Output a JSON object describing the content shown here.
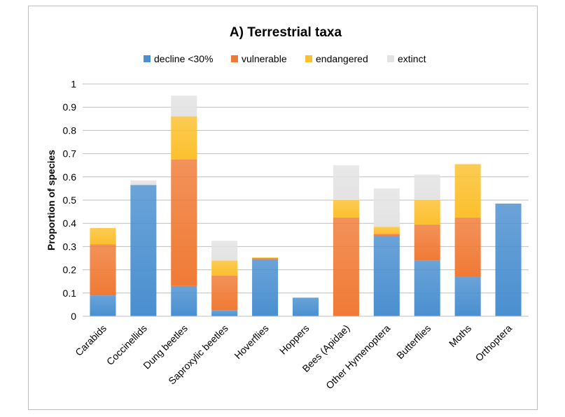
{
  "chart_data": {
    "type": "bar",
    "stacked": true,
    "title": "A) Terrestrial taxa",
    "xlabel": "",
    "ylabel": "Proportion of species",
    "ylim": [
      0,
      1
    ],
    "yticks": [
      "0",
      "0.1",
      "0.2",
      "0.3",
      "0.4",
      "0.5",
      "0.6",
      "0.7",
      "0.8",
      "0.9",
      "1"
    ],
    "grid": true,
    "legend_position": "top",
    "categories": [
      "Carabids",
      "Coccinellids",
      "Dung beetles",
      "Saproxylic beetles",
      "Hoverflies",
      "Hoppers",
      "Bees (Apidae)",
      "Other Hymenoptera",
      "Butterflies",
      "Moths",
      "Orthoptera"
    ],
    "series": [
      {
        "name": "decline <30%",
        "color": "#4a8fd0",
        "values": [
          0.09,
          0.565,
          0.13,
          0.025,
          0.245,
          0.08,
          0.0,
          0.345,
          0.24,
          0.17,
          0.485
        ]
      },
      {
        "name": "vulnerable",
        "color": "#f07a35",
        "values": [
          0.22,
          0.0,
          0.545,
          0.15,
          0.005,
          0.0,
          0.425,
          0.01,
          0.155,
          0.255,
          0.0
        ]
      },
      {
        "name": "endangered",
        "color": "#fcc02e",
        "values": [
          0.07,
          0.0,
          0.185,
          0.065,
          0.003,
          0.0,
          0.075,
          0.03,
          0.105,
          0.23,
          0.0
        ]
      },
      {
        "name": "extinct",
        "color": "#e3e3e3",
        "values": [
          0.0,
          0.02,
          0.09,
          0.085,
          0.0,
          0.0,
          0.15,
          0.165,
          0.11,
          0.0,
          0.0
        ]
      }
    ]
  }
}
